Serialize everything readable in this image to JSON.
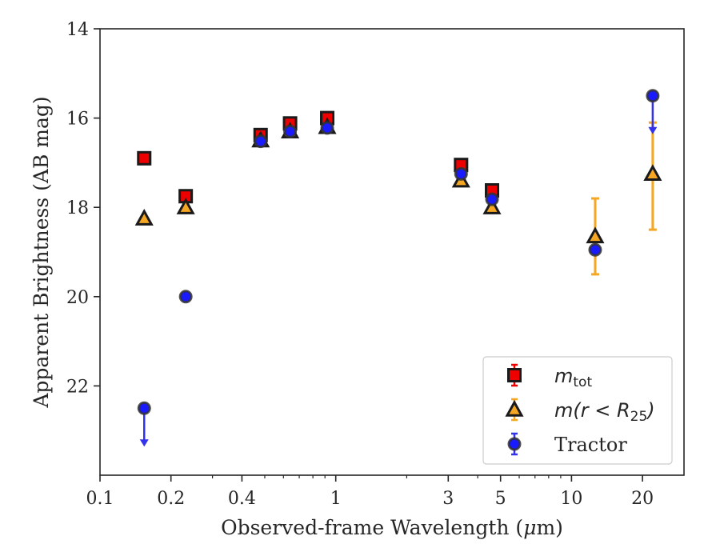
{
  "chart_data": {
    "type": "scatter",
    "xlabel_prefix": "Observed-frame Wavelength (",
    "xlabel_mu": "μ",
    "xlabel_suffix": "m)",
    "ylabel": "Apparent Brightness (AB mag)",
    "x_scale": "log",
    "y_inverted": true,
    "xlim": [
      0.1,
      30
    ],
    "ylim": [
      24,
      14
    ],
    "x_ticks": [
      {
        "value": 0.1,
        "label": "0.1"
      },
      {
        "value": 0.2,
        "label": "0.2"
      },
      {
        "value": 0.4,
        "label": "0.4"
      },
      {
        "value": 1,
        "label": "1"
      },
      {
        "value": 3,
        "label": "3"
      },
      {
        "value": 5,
        "label": "5"
      },
      {
        "value": 10,
        "label": "10"
      },
      {
        "value": 20,
        "label": "20"
      }
    ],
    "y_ticks": [
      {
        "value": 14,
        "label": "14"
      },
      {
        "value": 16,
        "label": "16"
      },
      {
        "value": 18,
        "label": "18"
      },
      {
        "value": 20,
        "label": "20"
      },
      {
        "value": 22,
        "label": "22"
      }
    ],
    "legend": {
      "placement": "lower-right",
      "entries": [
        {
          "series": "m_tot",
          "label": "m",
          "sub": "tot"
        },
        {
          "series": "m_r25",
          "label_pre": "m(r < R",
          "sub": "25",
          "label_post": ")"
        },
        {
          "series": "tractor",
          "label": "Tractor"
        }
      ]
    },
    "series": [
      {
        "id": "m_tot",
        "marker": "square",
        "fill": "#ee0000",
        "edge": "#1a1a1a",
        "err_color": "#ee0000",
        "points": [
          {
            "x": 0.154,
            "y": 16.9
          },
          {
            "x": 0.231,
            "y": 17.75
          },
          {
            "x": 0.48,
            "y": 16.38
          },
          {
            "x": 0.64,
            "y": 16.12
          },
          {
            "x": 0.92,
            "y": 16.0
          },
          {
            "x": 3.4,
            "y": 17.05
          },
          {
            "x": 4.6,
            "y": 17.62
          }
        ]
      },
      {
        "id": "m_r25",
        "marker": "triangle",
        "fill": "#f5a623",
        "edge": "#1a1a1a",
        "err_color": "#f5a623",
        "points": [
          {
            "x": 0.154,
            "y": 18.25
          },
          {
            "x": 0.231,
            "y": 18.0
          },
          {
            "x": 0.48,
            "y": 16.5
          },
          {
            "x": 0.64,
            "y": 16.3
          },
          {
            "x": 0.92,
            "y": 16.2
          },
          {
            "x": 3.4,
            "y": 17.4
          },
          {
            "x": 4.6,
            "y": 18.0
          },
          {
            "x": 12.6,
            "y": 18.65,
            "yerr_low": 17.8,
            "yerr_high": 19.5
          },
          {
            "x": 22.1,
            "y": 17.25,
            "yerr_low": 16.1,
            "yerr_high": 18.5
          }
        ]
      },
      {
        "id": "tractor",
        "marker": "circle",
        "fill": "#1a1aff",
        "edge": "#333333",
        "err_color": "#3333ee",
        "points": [
          {
            "x": 0.154,
            "y": 22.5,
            "upper_limit": true
          },
          {
            "x": 0.231,
            "y": 20.0
          },
          {
            "x": 0.48,
            "y": 16.52
          },
          {
            "x": 0.64,
            "y": 16.3
          },
          {
            "x": 0.92,
            "y": 16.22
          },
          {
            "x": 3.4,
            "y": 17.25
          },
          {
            "x": 4.6,
            "y": 17.82
          },
          {
            "x": 12.6,
            "y": 18.95
          },
          {
            "x": 22.1,
            "y": 15.5,
            "upper_limit": true
          }
        ]
      }
    ]
  }
}
